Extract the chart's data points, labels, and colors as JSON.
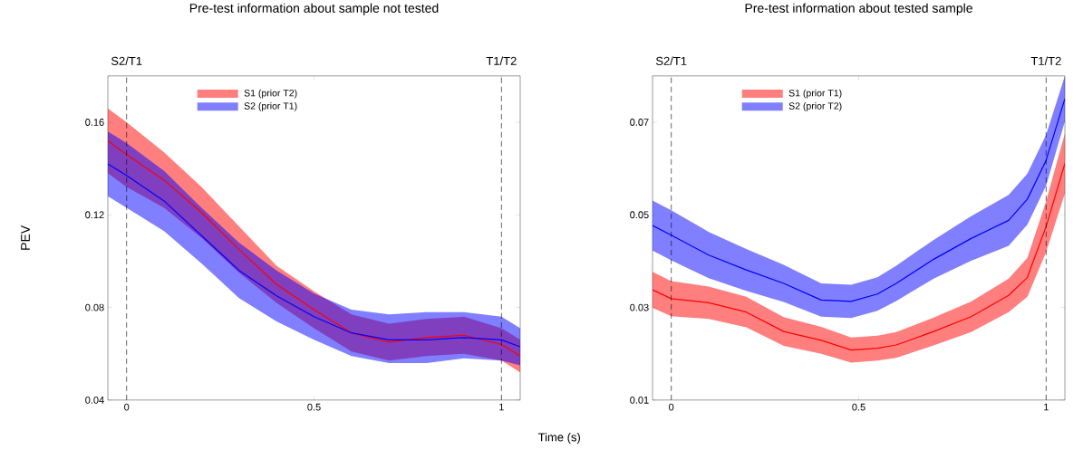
{
  "chart_data": [
    {
      "type": "line",
      "title": "Pre-test information about sample not tested",
      "xlabel": "Time (s)",
      "ylabel": "PEV",
      "legend": "top left",
      "x": [
        -0.05,
        0,
        0.1,
        0.2,
        0.3,
        0.4,
        0.5,
        0.6,
        0.7,
        0.8,
        0.9,
        1.0,
        1.05
      ],
      "series": [
        {
          "name": "S1 (prior T2)",
          "color": "#ff0000",
          "values": [
            0.152,
            0.146,
            0.135,
            0.121,
            0.105,
            0.09,
            0.079,
            0.069,
            0.065,
            0.067,
            0.068,
            0.064,
            0.059
          ],
          "lower": [
            0.138,
            0.132,
            0.123,
            0.11,
            0.095,
            0.082,
            0.071,
            0.061,
            0.057,
            0.059,
            0.06,
            0.057,
            0.052
          ],
          "upper": [
            0.166,
            0.16,
            0.147,
            0.132,
            0.115,
            0.098,
            0.087,
            0.077,
            0.073,
            0.075,
            0.076,
            0.071,
            0.066
          ]
        },
        {
          "name": "S2 (prior T1)",
          "color": "#0000ff",
          "values": [
            0.142,
            0.137,
            0.126,
            0.111,
            0.096,
            0.085,
            0.076,
            0.069,
            0.066,
            0.066,
            0.067,
            0.066,
            0.063
          ],
          "lower": [
            0.128,
            0.123,
            0.113,
            0.099,
            0.084,
            0.074,
            0.066,
            0.059,
            0.056,
            0.056,
            0.058,
            0.057,
            0.055
          ],
          "upper": [
            0.156,
            0.151,
            0.139,
            0.123,
            0.108,
            0.096,
            0.086,
            0.079,
            0.077,
            0.078,
            0.078,
            0.076,
            0.071
          ]
        }
      ],
      "xlim": [
        -0.05,
        1.05
      ],
      "ylim": [
        0.04,
        0.18
      ],
      "xticks": [
        0,
        0.5,
        1
      ],
      "yticks": [
        0.04,
        0.08,
        0.12,
        0.16
      ],
      "ref_lines": [
        {
          "axis": "x",
          "value": 0,
          "label": "S2/T1",
          "color": "#000000",
          "line_style": "dashed"
        },
        {
          "axis": "x",
          "value": 1,
          "label": "T1/T2",
          "color": "#000000",
          "line_style": "dashed"
        }
      ]
    },
    {
      "type": "line",
      "title": "Pre-test information about tested sample",
      "legend": "top left",
      "x": [
        -0.05,
        0,
        0.1,
        0.2,
        0.3,
        0.4,
        0.48,
        0.55,
        0.6,
        0.7,
        0.8,
        0.9,
        0.95,
        1.0,
        1.05
      ],
      "series": [
        {
          "name": "S1 (prior T1)",
          "color": "#ff0000",
          "values": [
            0.0338,
            0.0319,
            0.031,
            0.029,
            0.0248,
            0.0229,
            0.0208,
            0.0212,
            0.0219,
            0.0248,
            0.028,
            0.0326,
            0.0365,
            0.0475,
            0.0611
          ],
          "lower": [
            0.0299,
            0.0281,
            0.0275,
            0.0257,
            0.0217,
            0.02,
            0.0181,
            0.0185,
            0.0191,
            0.0218,
            0.0247,
            0.029,
            0.0323,
            0.042,
            0.0546
          ],
          "upper": [
            0.0377,
            0.0357,
            0.0345,
            0.0323,
            0.0279,
            0.0258,
            0.0235,
            0.0239,
            0.0247,
            0.0278,
            0.0313,
            0.0362,
            0.0407,
            0.053,
            0.0676
          ]
        },
        {
          "name": "S2 (prior T2)",
          "color": "#0000ff",
          "values": [
            0.0477,
            0.0456,
            0.0413,
            0.0381,
            0.0352,
            0.0316,
            0.0313,
            0.0329,
            0.0352,
            0.0404,
            0.0449,
            0.0488,
            0.0534,
            0.0618,
            0.0751
          ],
          "lower": [
            0.0423,
            0.0402,
            0.0363,
            0.0336,
            0.0312,
            0.028,
            0.0277,
            0.0293,
            0.0314,
            0.0362,
            0.0401,
            0.0433,
            0.0479,
            0.0563,
            0.0702
          ],
          "upper": [
            0.0531,
            0.051,
            0.0463,
            0.0426,
            0.0392,
            0.0352,
            0.0349,
            0.0365,
            0.039,
            0.0446,
            0.0497,
            0.0543,
            0.0589,
            0.0673,
            0.08
          ]
        }
      ],
      "xlim": [
        -0.05,
        1.05
      ],
      "ylim": [
        0.01,
        0.08
      ],
      "xticks": [
        0,
        0.5,
        1
      ],
      "yticks": [
        0.01,
        0.03,
        0.05,
        0.07
      ],
      "ref_lines": [
        {
          "axis": "x",
          "value": 0,
          "label": "S2/T1",
          "color": "#000000",
          "line_style": "dashed"
        },
        {
          "axis": "x",
          "value": 1,
          "label": "T1/T2",
          "color": "#000000",
          "line_style": "dashed"
        }
      ]
    }
  ]
}
